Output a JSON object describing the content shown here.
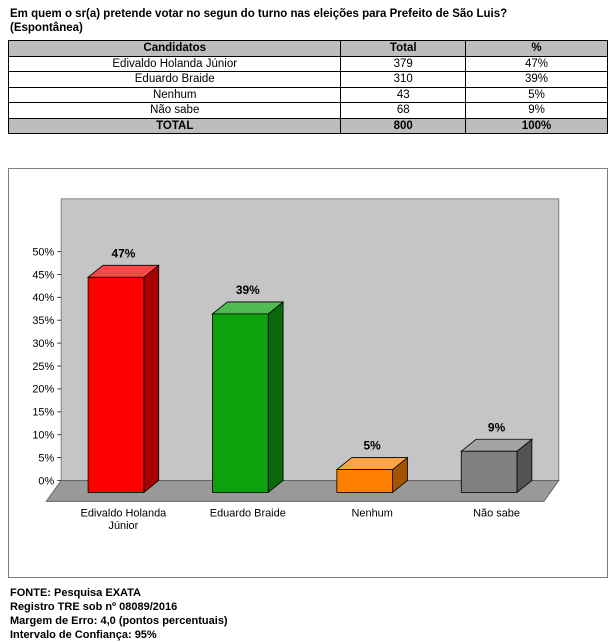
{
  "page": {
    "title_line1": "Em quem o sr(a) pretende votar no segun do turno nas eleições para Prefeito de São Luis?",
    "title_line2": "(Espontânea)"
  },
  "table": {
    "headers": [
      "Candidatos",
      "Total",
      "%"
    ],
    "rows": [
      [
        "Edivaldo Holanda Júnior",
        "379",
        "47%"
      ],
      [
        "Eduardo Braide",
        "310",
        "39%"
      ],
      [
        "Nenhum",
        "43",
        "5%"
      ],
      [
        "Não sabe",
        "68",
        "9%"
      ]
    ],
    "total_row": [
      "TOTAL",
      "800",
      "100%"
    ]
  },
  "chart_data": {
    "type": "bar",
    "style": "3d-column",
    "title": "",
    "xlabel": "",
    "ylabel": "",
    "categories": [
      "Edivaldo Holanda Júnior",
      "Eduardo Braide",
      "Nenhum",
      "Não sabe"
    ],
    "category_label_lines": [
      [
        "Edivaldo Holanda",
        "Júnior"
      ],
      [
        "Eduardo Braide"
      ],
      [
        "Nenhum"
      ],
      [
        "Não sabe"
      ]
    ],
    "values": [
      47,
      39,
      5,
      9
    ],
    "value_labels": [
      "47%",
      "39%",
      "5%",
      "9%"
    ],
    "bar_colors": [
      "#ff0000",
      "#0da10d",
      "#ff7f00",
      "#808080"
    ],
    "ylim": [
      0,
      50
    ],
    "ytick_step": 5,
    "ytick_suffix": "%",
    "grid": false,
    "legend": false,
    "wall_color": "#c5c5c5",
    "floor_color": "#999999"
  },
  "footer": {
    "lines": [
      "FONTE: Pesquisa EXATA",
      "Registro TRE sob nº 08089/2016",
      "Margem de Erro: 4,0 (pontos percentuais)",
      "Intervalo de Confiança: 95%"
    ]
  }
}
